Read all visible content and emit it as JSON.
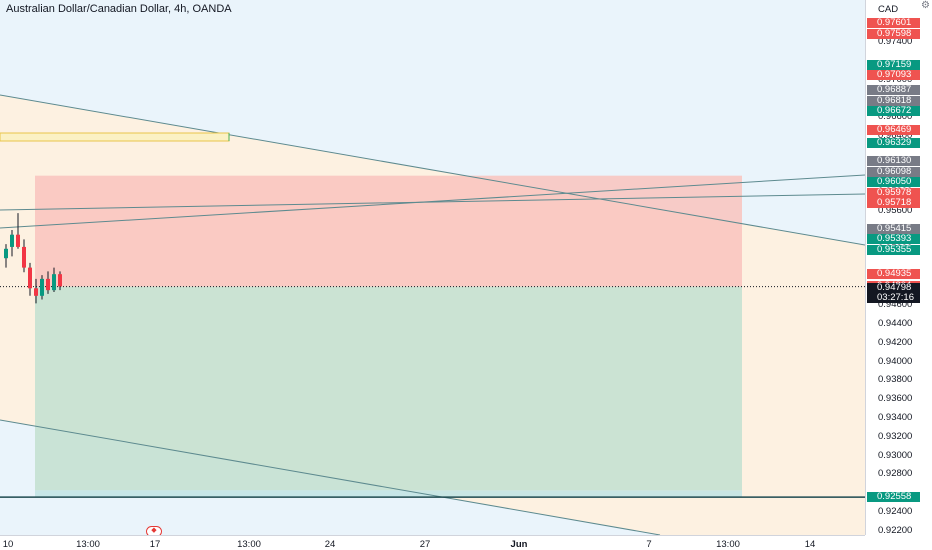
{
  "header": {
    "title": "Australian Dollar/Canadian Dollar, 4h, OANDA"
  },
  "price_scale": {
    "currency": "CAD",
    "settings_icon": "gear-icon",
    "ticks": [
      "0.97400",
      "0.97000",
      "0.96600",
      "0.96400",
      "0.95800",
      "0.95600",
      "0.95200",
      "0.94600",
      "0.94400",
      "0.94200",
      "0.94000",
      "0.93800",
      "0.93600",
      "0.93400",
      "0.93200",
      "0.93000",
      "0.92800",
      "0.92400",
      "0.92200"
    ],
    "badges": [
      {
        "text": "0.97601",
        "color": "#ef5350"
      },
      {
        "text": "0.97598",
        "color": "#ef5350"
      },
      {
        "text": "0.97159",
        "color": "#089981"
      },
      {
        "text": "0.97093",
        "color": "#ef5350"
      },
      {
        "text": "0.96887",
        "color": "#787b86"
      },
      {
        "text": "0.96818",
        "color": "#787b86"
      },
      {
        "text": "0.96672",
        "color": "#089981"
      },
      {
        "text": "0.96469",
        "color": "#ef5350"
      },
      {
        "text": "0.96329",
        "color": "#089981"
      },
      {
        "text": "0.96130",
        "color": "#787b86"
      },
      {
        "text": "0.96098",
        "color": "#787b86"
      },
      {
        "text": "0.96050",
        "color": "#089981"
      },
      {
        "text": "0.95978",
        "color": "#ef5350"
      },
      {
        "text": "0.95718",
        "color": "#ef5350"
      },
      {
        "text": "0.95415",
        "color": "#787b86"
      },
      {
        "text": "0.95393",
        "color": "#089981"
      },
      {
        "text": "0.95355",
        "color": "#089981"
      },
      {
        "text": "0.94935",
        "color": "#ef5350"
      },
      {
        "text": "0.94804",
        "color": "#ef5350"
      },
      {
        "text": "0.92558",
        "color": "#089981"
      }
    ],
    "last_price": {
      "text": "0.94798",
      "countdown": "03:27:16",
      "color": "#131722"
    }
  },
  "time_axis": {
    "labels": [
      {
        "text": "10",
        "bold": false
      },
      {
        "text": "13:00",
        "bold": false
      },
      {
        "text": "17",
        "bold": false
      },
      {
        "text": "13:00",
        "bold": false
      },
      {
        "text": "24",
        "bold": false
      },
      {
        "text": "27",
        "bold": false
      },
      {
        "text": "Jun",
        "bold": true
      },
      {
        "text": "7",
        "bold": false
      },
      {
        "text": "13:00",
        "bold": false
      },
      {
        "text": "14",
        "bold": false
      }
    ]
  },
  "event_flag": {
    "icon": "canada-flag-icon"
  },
  "chart_data": {
    "type": "candlestick",
    "symbol": "AUDCAD",
    "interval": "4h",
    "last_price": 0.94798,
    "position": {
      "side": "short",
      "entry": 0.94798,
      "stop": 0.95978,
      "target": 0.92558,
      "colors": {
        "stop": "#f7b4ae",
        "target": "#b2d8c6"
      }
    },
    "candles": [
      {
        "o": 0.951,
        "h": 0.9525,
        "l": 0.95,
        "c": 0.952
      },
      {
        "o": 0.9522,
        "h": 0.954,
        "l": 0.9512,
        "c": 0.9535
      },
      {
        "o": 0.9535,
        "h": 0.9558,
        "l": 0.952,
        "c": 0.9522
      },
      {
        "o": 0.9522,
        "h": 0.953,
        "l": 0.9495,
        "c": 0.95
      },
      {
        "o": 0.95,
        "h": 0.9505,
        "l": 0.947,
        "c": 0.9478
      },
      {
        "o": 0.9478,
        "h": 0.9488,
        "l": 0.9462,
        "c": 0.947
      },
      {
        "o": 0.947,
        "h": 0.9492,
        "l": 0.9466,
        "c": 0.9488
      },
      {
        "o": 0.9488,
        "h": 0.9496,
        "l": 0.9472,
        "c": 0.9476
      },
      {
        "o": 0.9476,
        "h": 0.95,
        "l": 0.9474,
        "c": 0.9493
      },
      {
        "o": 0.9493,
        "h": 0.9496,
        "l": 0.9476,
        "c": 0.948
      }
    ],
    "ylim": [
      0.921,
      0.979
    ]
  }
}
